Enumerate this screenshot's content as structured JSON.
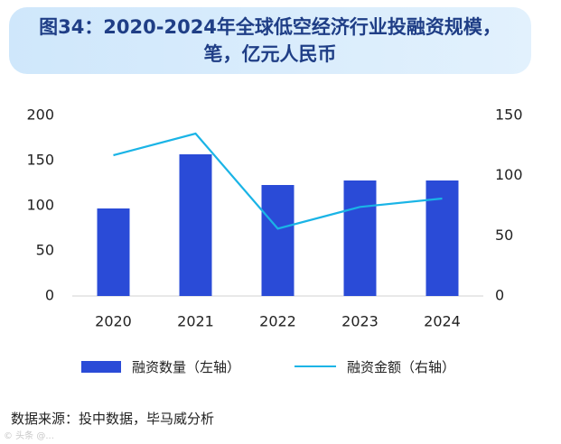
{
  "title": {
    "line1": "图34：2020-2024年全球低空经济行业投融资规模，",
    "line2": "笔，亿元人民币"
  },
  "chart_data": {
    "type": "bar",
    "categories": [
      "2020",
      "2021",
      "2022",
      "2023",
      "2024"
    ],
    "series": [
      {
        "name": "融资数量（左轴）",
        "type": "bar",
        "axis": "left",
        "color": "#2a4bd7",
        "values": [
          97,
          157,
          123,
          128,
          128
        ]
      },
      {
        "name": "融资金额（右轴）",
        "type": "line",
        "axis": "right",
        "color": "#1ab4e6",
        "values": [
          117,
          135,
          56,
          74,
          81
        ]
      }
    ],
    "y_left": {
      "min": 0,
      "max": 200,
      "ticks": [
        0,
        50,
        100,
        150,
        200
      ]
    },
    "y_right": {
      "min": 0,
      "max": 150,
      "ticks": [
        0,
        50,
        100,
        150
      ]
    },
    "grid": false,
    "legend_position": "bottom"
  },
  "source": "数据来源：投中数据，毕马威分析",
  "watermark": "© 头条 @..."
}
